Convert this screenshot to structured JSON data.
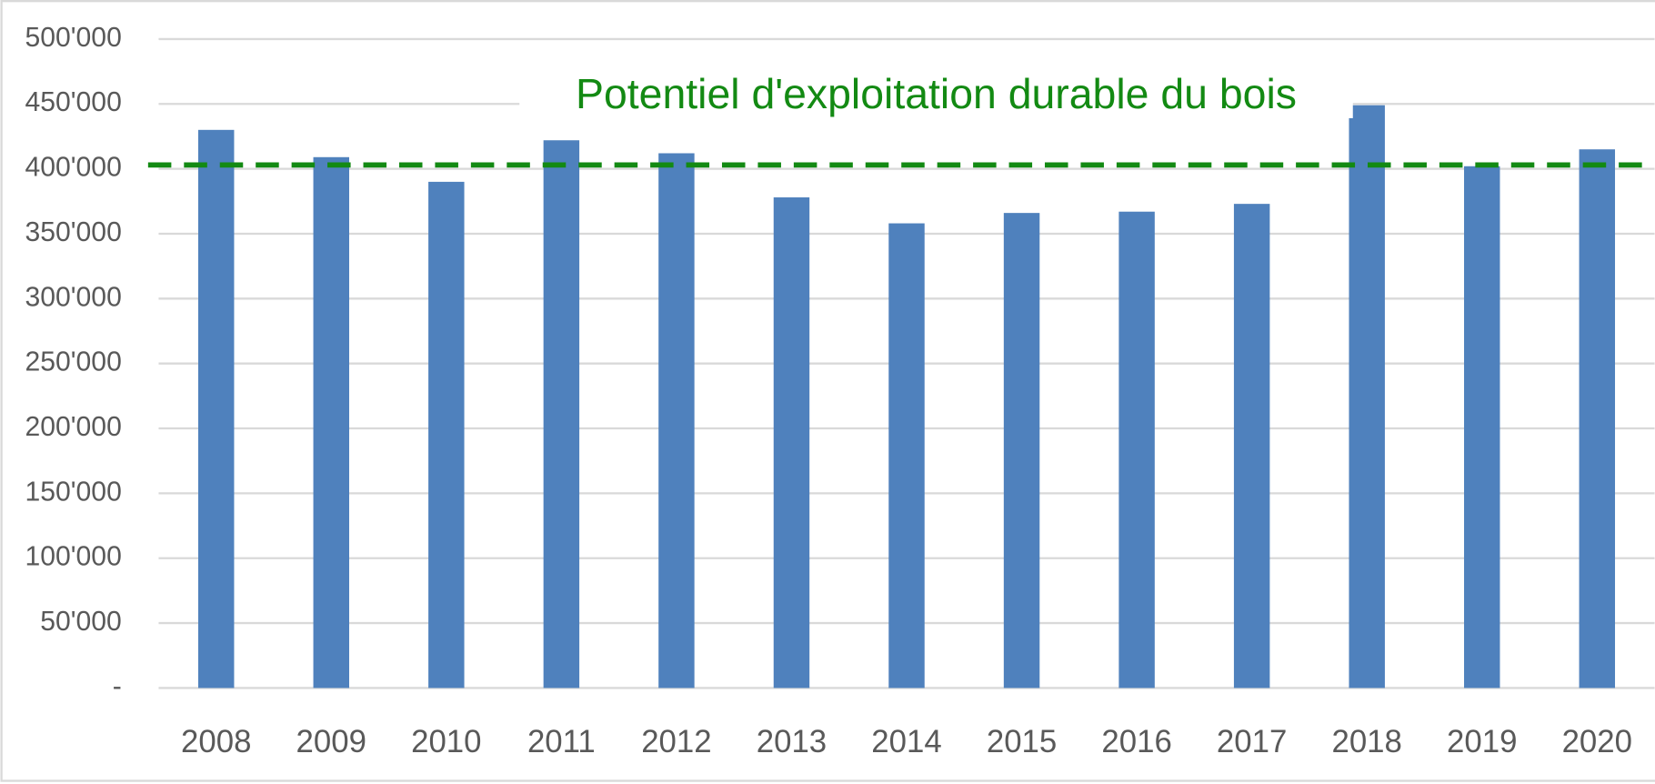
{
  "chart_data": {
    "type": "bar",
    "categories": [
      "2008",
      "2009",
      "2010",
      "2011",
      "2012",
      "2013",
      "2014",
      "2015",
      "2016",
      "2017",
      "2018",
      "2019",
      "2020"
    ],
    "values": [
      430000,
      409000,
      390000,
      422000,
      412000,
      378000,
      358000,
      366000,
      367000,
      373000,
      449000,
      402000,
      415000
    ],
    "color": "#4f81bd",
    "ylim": [
      0,
      500000
    ],
    "yticks": [
      {
        "value": 0,
        "label": "-"
      },
      {
        "value": 50000,
        "label": "50'000"
      },
      {
        "value": 100000,
        "label": "100'000"
      },
      {
        "value": 150000,
        "label": "150'000"
      },
      {
        "value": 200000,
        "label": "200'000"
      },
      {
        "value": 250000,
        "label": "250'000"
      },
      {
        "value": 300000,
        "label": "300'000"
      },
      {
        "value": 350000,
        "label": "350'000"
      },
      {
        "value": 400000,
        "label": "400'000"
      },
      {
        "value": 450000,
        "label": "450'000"
      },
      {
        "value": 500000,
        "label": "500'000"
      }
    ],
    "grid": true,
    "reference_line": {
      "label": "Potentiel d'exploitation durable du bois",
      "value": 403000,
      "color": "#138a13"
    }
  }
}
